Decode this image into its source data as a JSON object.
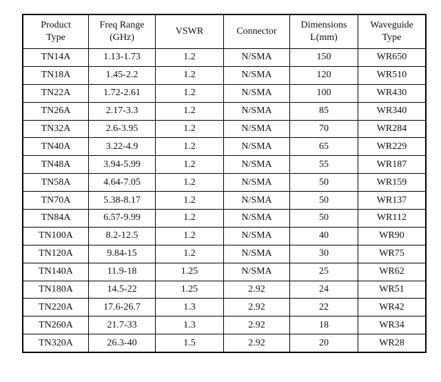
{
  "table": {
    "header": [
      [
        "Product",
        "Type"
      ],
      [
        "Freq Range",
        "(GHz)"
      ],
      [
        "VSWR"
      ],
      [
        "Connector"
      ],
      [
        "Dimensions",
        "L(mm)"
      ],
      [
        "Waveguide",
        "Type"
      ]
    ],
    "rows": [
      [
        "TN14A",
        "1.13-1.73",
        "1.2",
        "N/SMA",
        "150",
        "WR650"
      ],
      [
        "TN18A",
        "1.45-2.2",
        "1.2",
        "N/SMA",
        "120",
        "WR510"
      ],
      [
        "TN22A",
        "1.72-2.61",
        "1.2",
        "N/SMA",
        "100",
        "WR430"
      ],
      [
        "TN26A",
        "2.17-3.3",
        "1.2",
        "N/SMA",
        "85",
        "WR340"
      ],
      [
        "TN32A",
        "2.6-3.95",
        "1.2",
        "N/SMA",
        "70",
        "WR284"
      ],
      [
        "TN40A",
        "3.22-4.9",
        "1.2",
        "N/SMA",
        "65",
        "WR229"
      ],
      [
        "TN48A",
        "3.94-5.99",
        "1.2",
        "N/SMA",
        "55",
        "WR187"
      ],
      [
        "TN58A",
        "4.64-7.05",
        "1.2",
        "N/SMA",
        "50",
        "WR159"
      ],
      [
        "TN70A",
        "5.38-8.17",
        "1.2",
        "N/SMA",
        "50",
        "WR137"
      ],
      [
        "TN84A",
        "6.57-9.99",
        "1.2",
        "N/SMA",
        "50",
        "WR112"
      ],
      [
        "TN100A",
        "8.2-12.5",
        "1.2",
        "N/SMA",
        "40",
        "WR90"
      ],
      [
        "TN120A",
        "9.84-15",
        "1.2",
        "N/SMA",
        "30",
        "WR75"
      ],
      [
        "TN140A",
        "11.9-18",
        "1.25",
        "N/SMA",
        "25",
        "WR62"
      ],
      [
        "TN180A",
        "14.5-22",
        "1.25",
        "2.92",
        "24",
        "WR51"
      ],
      [
        "TN220A",
        "17.6-26.7",
        "1.3",
        "2.92",
        "22",
        "WR42"
      ],
      [
        "TN260A",
        "21.7-33",
        "1.3",
        "2.92",
        "18",
        "WR34"
      ],
      [
        "TN320A",
        "26.3-40",
        "1.5",
        "2.92",
        "20",
        "WR28"
      ]
    ]
  }
}
